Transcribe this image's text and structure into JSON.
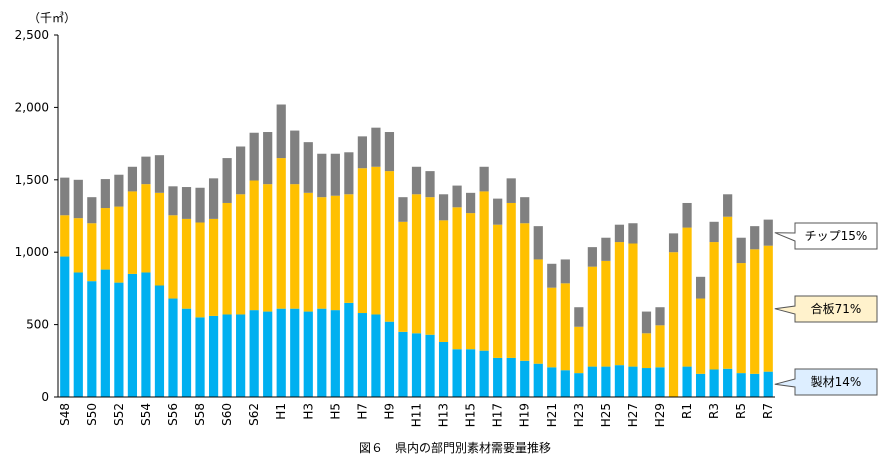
{
  "chart_data": {
    "type": "bar",
    "stacked": true,
    "unit_label": "（千㎥）",
    "caption": "図６　県内の部門別素材需要量推移",
    "ylim": [
      0,
      2500
    ],
    "yticks": [
      "0",
      "500",
      "1,000",
      "1,500",
      "2,000",
      "2,500"
    ],
    "ytick_values": [
      0,
      500,
      1000,
      1500,
      2000,
      2500
    ],
    "grid": false,
    "categories": [
      "S48",
      "S49",
      "S50",
      "S51",
      "S52",
      "S53",
      "S54",
      "S55",
      "S56",
      "S57",
      "S58",
      "S59",
      "S60",
      "S61",
      "S62",
      "S63",
      "H1",
      "H2",
      "H3",
      "H4",
      "H5",
      "H6",
      "H7",
      "H8",
      "H9",
      "H10",
      "H11",
      "H12",
      "H13",
      "H14",
      "H15",
      "H16",
      "H17",
      "H18",
      "H19",
      "H20",
      "H21",
      "H22",
      "H23",
      "H24",
      "H25",
      "H26",
      "H27",
      "H28",
      "H29",
      "H30",
      "R1",
      "R2",
      "R3",
      "R4",
      "R5",
      "R6",
      "R7"
    ],
    "x_tick_labels": [
      "S48",
      "",
      "S50",
      "",
      "S52",
      "",
      "S54",
      "",
      "S56",
      "",
      "S58",
      "",
      "S60",
      "",
      "S62",
      "",
      "H1",
      "",
      "H3",
      "",
      "H5",
      "",
      "H7",
      "",
      "H9",
      "",
      "H11",
      "",
      "H13",
      "",
      "H15",
      "",
      "H17",
      "",
      "H19",
      "",
      "H21",
      "",
      "H23",
      "",
      "H25",
      "",
      "H27",
      "",
      "H29",
      "",
      "R1",
      "",
      "R3",
      "",
      "R5",
      "",
      "R7"
    ],
    "series": [
      {
        "key": "seizai",
        "color": "#00b0f0",
        "values": [
          970,
          860,
          800,
          880,
          790,
          850,
          860,
          770,
          680,
          610,
          550,
          560,
          570,
          570,
          600,
          590,
          610,
          610,
          590,
          610,
          600,
          650,
          580,
          570,
          520,
          450,
          440,
          430,
          380,
          330,
          330,
          320,
          270,
          270,
          250,
          230,
          205,
          185,
          165,
          210,
          210,
          220,
          210,
          200,
          205,
          0,
          210,
          160,
          190,
          195,
          165,
          160,
          175
        ]
      },
      {
        "key": "gouhan",
        "color": "#ffc000",
        "values": [
          285,
          375,
          400,
          425,
          525,
          570,
          610,
          640,
          575,
          620,
          655,
          670,
          770,
          830,
          895,
          880,
          1040,
          860,
          820,
          770,
          790,
          750,
          1000,
          1020,
          1040,
          760,
          960,
          950,
          840,
          980,
          940,
          1100,
          920,
          1070,
          950,
          720,
          550,
          600,
          320,
          690,
          730,
          850,
          850,
          240,
          290,
          1000,
          960,
          520,
          880,
          1050,
          760,
          860,
          870
        ]
      },
      {
        "key": "chip",
        "color": "#808080",
        "values": [
          260,
          265,
          180,
          200,
          220,
          170,
          190,
          260,
          200,
          220,
          240,
          280,
          310,
          330,
          330,
          360,
          370,
          370,
          350,
          300,
          290,
          290,
          220,
          270,
          270,
          170,
          190,
          180,
          180,
          150,
          140,
          170,
          180,
          170,
          180,
          230,
          165,
          165,
          135,
          135,
          160,
          120,
          140,
          150,
          125,
          130,
          170,
          150,
          140,
          155,
          175,
          160,
          180
        ]
      }
    ],
    "callouts": [
      {
        "series": "chip",
        "text": "チップ15%"
      },
      {
        "series": "gouhan",
        "text": "合板71%"
      },
      {
        "series": "seizai",
        "text": "製材14%"
      }
    ]
  }
}
